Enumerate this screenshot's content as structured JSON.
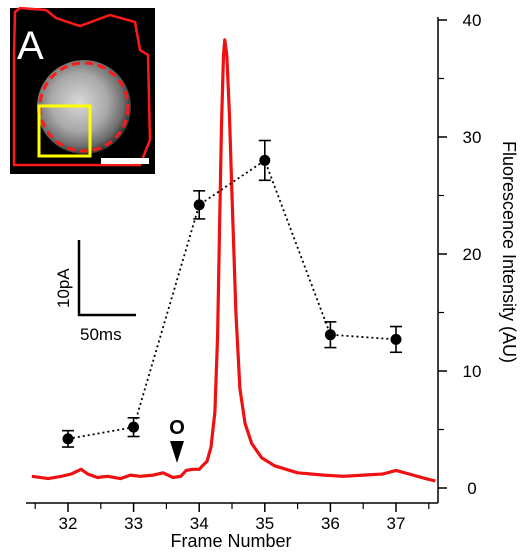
{
  "chart_data": {
    "type": "line",
    "xlabel": "Frame Number",
    "ylabel": "Fluorescence Intensity (AU)",
    "xlim": [
      31.5,
      37.6
    ],
    "ylim": [
      0,
      40
    ],
    "x_ticks": [
      "32",
      "33",
      "34",
      "35",
      "36",
      "37"
    ],
    "y_ticks": [
      "0",
      "10",
      "20",
      "30",
      "40"
    ],
    "series": [
      {
        "style": "black dotted line with filled circle markers and error bars",
        "color": "#000000",
        "x": [
          32,
          33,
          34,
          35,
          36,
          37
        ],
        "y": [
          4.2,
          5.2,
          24.2,
          28.0,
          13.1,
          12.7
        ],
        "error": [
          0.7,
          0.8,
          1.2,
          1.7,
          1.1,
          1.1
        ]
      },
      {
        "style": "red current trace (scaled to scale bar)",
        "color": "#ee1111",
        "x": [
          31.45,
          31.7,
          31.9,
          32.05,
          32.2,
          32.3,
          32.45,
          32.6,
          32.8,
          32.95,
          33.1,
          33.3,
          33.45,
          33.6,
          33.72,
          33.8,
          33.9,
          34.0,
          34.05,
          34.12,
          34.18,
          34.24,
          34.28,
          34.31,
          34.34,
          34.37,
          34.39,
          34.42,
          34.46,
          34.5,
          34.56,
          34.62,
          34.7,
          34.8,
          34.95,
          35.15,
          35.5,
          35.9,
          36.2,
          36.5,
          36.8,
          37.0,
          37.2,
          37.45,
          37.6
        ],
        "y": [
          1.0,
          0.8,
          1.0,
          1.2,
          1.6,
          1.2,
          0.9,
          1.0,
          0.8,
          1.1,
          1.0,
          1.1,
          1.3,
          0.9,
          1.0,
          1.5,
          1.6,
          1.6,
          1.9,
          2.3,
          3.5,
          6.5,
          13,
          22,
          31,
          37,
          38.3,
          37,
          32,
          25,
          15,
          8.5,
          5.5,
          3.8,
          2.6,
          1.9,
          1.3,
          1.1,
          1.0,
          1.1,
          1.2,
          1.5,
          1.2,
          0.8,
          0.6
        ]
      }
    ],
    "annotations": {
      "panel_label": "A",
      "stimulus_marker": "O",
      "scale_bar_y": "10pA",
      "scale_bar_x": "50ms"
    },
    "grid": false,
    "y_axis_side": "right"
  }
}
